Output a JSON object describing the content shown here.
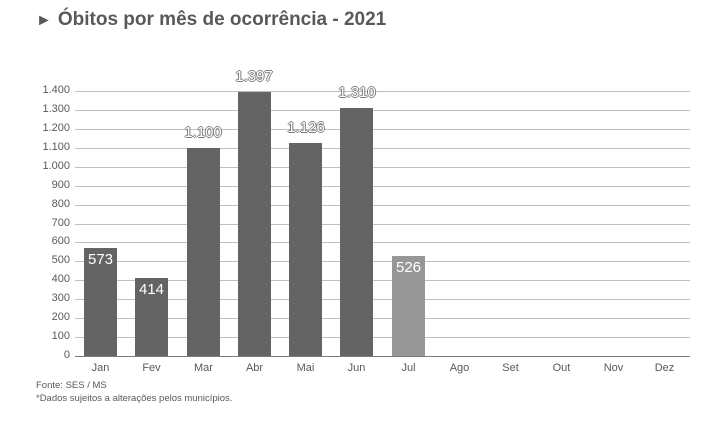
{
  "title": "Óbitos por mês de ocorrência - 2021",
  "title_icon": "►",
  "footer": {
    "source": "Fonte: SES / MS",
    "note": "*Dados sujeitos a alterações pelos municípios."
  },
  "colors": {
    "bar": "#646464",
    "bar_partial": "#979797",
    "grid": "#bfbfbf",
    "text": "#595959"
  },
  "chart_data": {
    "type": "bar",
    "title": "Óbitos por mês de ocorrência - 2021",
    "xlabel": "",
    "ylabel": "",
    "ylim": [
      0,
      1400
    ],
    "yticks": [
      0,
      100,
      200,
      300,
      400,
      500,
      600,
      700,
      800,
      900,
      1000,
      1100,
      1200,
      1300,
      1400
    ],
    "ytick_labels": [
      "0",
      "100",
      "200",
      "300",
      "400",
      "500",
      "600",
      "700",
      "800",
      "900",
      "1.000",
      "1.100",
      "1.200",
      "1.300",
      "1.400"
    ],
    "grid": true,
    "legend": null,
    "categories": [
      "Jan",
      "Fev",
      "Mar",
      "Abr",
      "Mai",
      "Jun",
      "Jul",
      "Ago",
      "Set",
      "Out",
      "Nov",
      "Dez"
    ],
    "values": [
      573,
      414,
      1100,
      1397,
      1126,
      1310,
      526,
      null,
      null,
      null,
      null,
      null
    ],
    "value_labels": [
      "573",
      "414",
      "1.100",
      "1.397",
      "1.126",
      "1.310",
      "526",
      "",
      "",
      "",
      "",
      ""
    ],
    "highlight": {
      "Jul": "partial month (lighter color)"
    }
  }
}
